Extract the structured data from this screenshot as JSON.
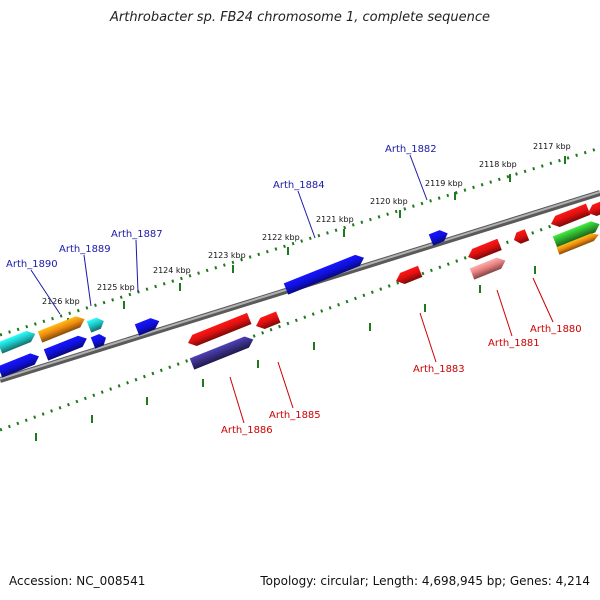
{
  "title": "Arthrobacter sp. FB24 chromosome 1, complete sequence",
  "footer": {
    "accession": "Accession: NC_008541",
    "topology": "Topology: circular; Length: 4,698,945 bp; Genes: 4,214"
  },
  "ruler_ticks": [
    "2117 kbp",
    "2118 kbp",
    "2119 kbp",
    "2120 kbp",
    "2121 kbp",
    "2122 kbp",
    "2123 kbp",
    "2124 kbp",
    "2125 kbp",
    "2126 kbp"
  ],
  "forward_genes": [
    "Arth_1882",
    "Arth_1884",
    "Arth_1887",
    "Arth_1889",
    "Arth_1890"
  ],
  "reverse_genes": [
    "Arth_1880",
    "Arth_1881",
    "Arth_1883",
    "Arth_1885",
    "Arth_1886"
  ],
  "colors": {
    "forward_label": "#1a1aa8",
    "reverse_label": "#cc0000",
    "backbone": "#808080",
    "ruler": "#1f7a1f",
    "blue": "#1010e0",
    "red": "#e01010",
    "cyan": "#20c8c8",
    "orange": "#f08c10",
    "green": "#30b030",
    "pink": "#e88080",
    "navy": "#3a3088"
  }
}
